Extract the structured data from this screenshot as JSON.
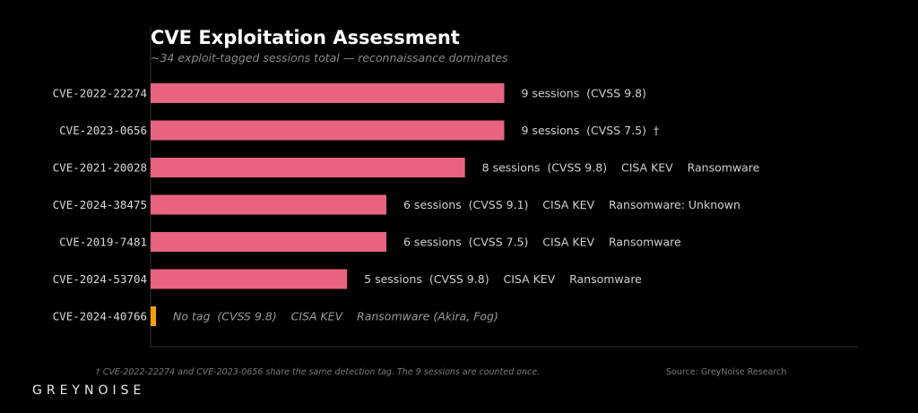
{
  "chart_data": {
    "type": "bar",
    "orientation": "horizontal",
    "title": "CVE Exploitation Assessment",
    "subtitle": "~34 exploit-tagged sessions total — reconnaissance dominates",
    "xlabel": "",
    "ylabel": "",
    "xlim": [
      0,
      18
    ],
    "grid": false,
    "categories": [
      "CVE-2022-22274",
      "CVE-2023-0656",
      "CVE-2021-20028",
      "CVE-2024-38475",
      "CVE-2019-7481",
      "CVE-2024-53704",
      "CVE-2024-40766"
    ],
    "values": [
      9,
      9,
      8,
      6,
      6,
      5,
      0
    ],
    "bar_colors": [
      "#e8637d",
      "#e8637d",
      "#e8637d",
      "#e8637d",
      "#e8637d",
      "#e8637d",
      "#f59e0b"
    ],
    "annotations": [
      "9 sessions  (CVSS 9.8)",
      "9 sessions  (CVSS 7.5)  †",
      "8 sessions  (CVSS 9.8)    CISA KEV    Ransomware",
      "6 sessions  (CVSS 9.1)    CISA KEV    Ransomware: Unknown",
      "6 sessions  (CVSS 7.5)    CISA KEV    Ransomware",
      "5 sessions  (CVSS 9.8)    CISA KEV    Ransomware",
      "No tag  (CVSS 9.8)    CISA KEV    Ransomware (Akira, Fog)"
    ],
    "annotation_italic": [
      false,
      false,
      false,
      false,
      false,
      false,
      true
    ]
  },
  "footnote": "† CVE-2022-22274 and CVE-2023-0656 share the same detection tag. The 9 sessions are counted once.",
  "source": "Source: GreyNoise Research",
  "logo": "GREYNOISE",
  "colors": {
    "background": "#000000",
    "bar": "#e8637d",
    "highlight_bar": "#f59e0b",
    "text": "#cccccc"
  }
}
